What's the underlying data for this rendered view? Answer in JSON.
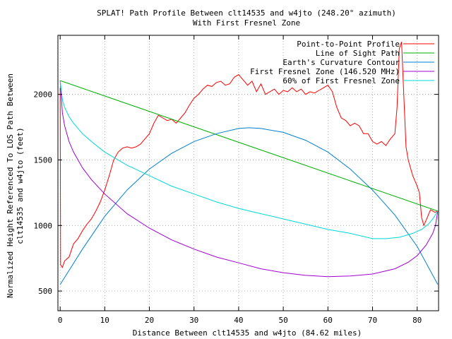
{
  "chart_data": {
    "type": "line",
    "title_line1": "SPLAT! Path Profile Between clt14535 and w4jto (248.20° azimuth)",
    "title_line2": "With First Fresnel Zone",
    "xlabel": "Distance Between clt14535 and w4jto (84.62 miles)",
    "ylabel_line1": "Normalized Height Referenced To LOS Path Between",
    "ylabel_line2": "clt14535 and w4jto (feet)",
    "xlim": [
      -0.5,
      84.8
    ],
    "ylim": [
      350,
      2450
    ],
    "xticks": [
      0,
      10,
      20,
      30,
      40,
      50,
      60,
      70,
      80
    ],
    "yticks": [
      500,
      1000,
      1500,
      2000
    ],
    "grid": true,
    "legend_position": "top-right",
    "series": [
      {
        "name": "Point-to-Point Profile",
        "color": "#ff0000",
        "points": [
          [
            0,
            2050
          ],
          [
            0.1,
            700
          ],
          [
            0.5,
            680
          ],
          [
            1,
            730
          ],
          [
            2,
            760
          ],
          [
            3,
            860
          ],
          [
            4,
            900
          ],
          [
            5,
            960
          ],
          [
            6,
            1010
          ],
          [
            7,
            1050
          ],
          [
            8,
            1110
          ],
          [
            9,
            1180
          ],
          [
            10,
            1270
          ],
          [
            11,
            1380
          ],
          [
            12,
            1500
          ],
          [
            13,
            1560
          ],
          [
            14,
            1590
          ],
          [
            15,
            1600
          ],
          [
            16,
            1590
          ],
          [
            17,
            1600
          ],
          [
            18,
            1620
          ],
          [
            19,
            1660
          ],
          [
            20,
            1700
          ],
          [
            21,
            1780
          ],
          [
            22,
            1840
          ],
          [
            23,
            1820
          ],
          [
            24,
            1800
          ],
          [
            25,
            1810
          ],
          [
            26,
            1780
          ],
          [
            27,
            1820
          ],
          [
            28,
            1860
          ],
          [
            29,
            1920
          ],
          [
            30,
            1970
          ],
          [
            31,
            2000
          ],
          [
            32,
            2040
          ],
          [
            33,
            2070
          ],
          [
            34,
            2060
          ],
          [
            35,
            2090
          ],
          [
            36,
            2100
          ],
          [
            37,
            2070
          ],
          [
            38,
            2080
          ],
          [
            39,
            2130
          ],
          [
            40,
            2150
          ],
          [
            41,
            2110
          ],
          [
            42,
            2070
          ],
          [
            43,
            2100
          ],
          [
            44,
            2020
          ],
          [
            45,
            2080
          ],
          [
            46,
            2000
          ],
          [
            47,
            2020
          ],
          [
            48,
            2040
          ],
          [
            49,
            2000
          ],
          [
            50,
            2030
          ],
          [
            51,
            2020
          ],
          [
            52,
            2050
          ],
          [
            53,
            2020
          ],
          [
            54,
            2040
          ],
          [
            55,
            2000
          ],
          [
            56,
            2020
          ],
          [
            57,
            2010
          ],
          [
            58,
            2030
          ],
          [
            59,
            2050
          ],
          [
            60,
            2070
          ],
          [
            61,
            2020
          ],
          [
            62,
            1900
          ],
          [
            63,
            1820
          ],
          [
            64,
            1800
          ],
          [
            65,
            1760
          ],
          [
            66,
            1780
          ],
          [
            67,
            1760
          ],
          [
            68,
            1700
          ],
          [
            69,
            1700
          ],
          [
            70,
            1640
          ],
          [
            71,
            1620
          ],
          [
            72,
            1640
          ],
          [
            73,
            1610
          ],
          [
            74,
            1660
          ],
          [
            75,
            1700
          ],
          [
            75.5,
            1900
          ],
          [
            76,
            2350
          ],
          [
            76.5,
            2400
          ],
          [
            77,
            2000
          ],
          [
            77.5,
            1600
          ],
          [
            78,
            1500
          ],
          [
            79,
            1380
          ],
          [
            80,
            1300
          ],
          [
            80.5,
            1250
          ],
          [
            81,
            1060
          ],
          [
            81.5,
            1000
          ],
          [
            82,
            1040
          ],
          [
            83,
            1120
          ],
          [
            84,
            1100
          ],
          [
            84.6,
            1110
          ]
        ]
      },
      {
        "name": "Line of Sight Path",
        "color": "#00b000",
        "points": [
          [
            0,
            2105
          ],
          [
            84.62,
            1110
          ]
        ]
      },
      {
        "name": "Earth's Curvature Contour",
        "color": "#0080d0",
        "points": [
          [
            0,
            550
          ],
          [
            5,
            820
          ],
          [
            10,
            1070
          ],
          [
            15,
            1270
          ],
          [
            20,
            1430
          ],
          [
            25,
            1550
          ],
          [
            30,
            1640
          ],
          [
            35,
            1700
          ],
          [
            40,
            1740
          ],
          [
            42.3,
            1745
          ],
          [
            45,
            1740
          ],
          [
            50,
            1710
          ],
          [
            55,
            1650
          ],
          [
            60,
            1560
          ],
          [
            65,
            1430
          ],
          [
            70,
            1270
          ],
          [
            75,
            1080
          ],
          [
            80,
            840
          ],
          [
            84.62,
            550
          ]
        ]
      },
      {
        "name": "First Fresnel Zone (146.520 MHz)",
        "color": "#a000d0",
        "points": [
          [
            0,
            2105
          ],
          [
            0.5,
            1860
          ],
          [
            1,
            1760
          ],
          [
            2,
            1640
          ],
          [
            3,
            1560
          ],
          [
            5,
            1440
          ],
          [
            7,
            1350
          ],
          [
            10,
            1240
          ],
          [
            15,
            1090
          ],
          [
            20,
            980
          ],
          [
            25,
            890
          ],
          [
            30,
            820
          ],
          [
            35,
            760
          ],
          [
            40,
            715
          ],
          [
            45,
            670
          ],
          [
            50,
            640
          ],
          [
            55,
            620
          ],
          [
            60,
            610
          ],
          [
            65,
            615
          ],
          [
            70,
            630
          ],
          [
            75,
            670
          ],
          [
            78,
            720
          ],
          [
            80,
            770
          ],
          [
            82,
            850
          ],
          [
            83.5,
            940
          ],
          [
            84.1,
            1000
          ],
          [
            84.62,
            1110
          ]
        ]
      },
      {
        "name": "60% of First Fresnel Zone",
        "color": "#00d8d8",
        "points": [
          [
            0,
            2105
          ],
          [
            0.5,
            1960
          ],
          [
            1,
            1900
          ],
          [
            2,
            1830
          ],
          [
            3,
            1780
          ],
          [
            5,
            1700
          ],
          [
            7,
            1640
          ],
          [
            10,
            1560
          ],
          [
            15,
            1460
          ],
          [
            20,
            1380
          ],
          [
            25,
            1300
          ],
          [
            30,
            1240
          ],
          [
            35,
            1180
          ],
          [
            40,
            1130
          ],
          [
            45,
            1090
          ],
          [
            50,
            1050
          ],
          [
            55,
            1010
          ],
          [
            60,
            970
          ],
          [
            65,
            940
          ],
          [
            70,
            900
          ],
          [
            73,
            900
          ],
          [
            76,
            910
          ],
          [
            79,
            940
          ],
          [
            81,
            970
          ],
          [
            82.5,
            1010
          ],
          [
            83.5,
            1050
          ],
          [
            84.62,
            1110
          ]
        ]
      }
    ]
  }
}
